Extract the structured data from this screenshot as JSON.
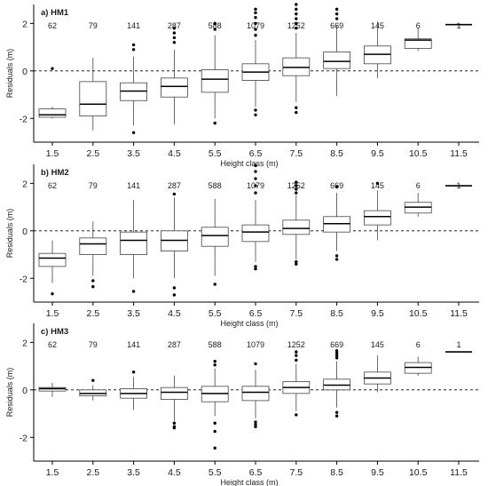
{
  "chart_data": [
    {
      "type": "box",
      "title": "a) HM1",
      "xlabel": "Height class (m)",
      "ylabel": "Residuals (m)",
      "ylim": [
        -3,
        2.8
      ],
      "yticks": [
        -2,
        0,
        2
      ],
      "grid": false,
      "zero_line": "dashed",
      "categories": [
        "1.5",
        "2.5",
        "3.5",
        "4.5",
        "5.5",
        "6.5",
        "7.5",
        "8.5",
        "9.5",
        "10.5",
        "11.5"
      ],
      "counts": [
        "62",
        "79",
        "141",
        "287",
        "588",
        "1079",
        "1252",
        "669",
        "145",
        "6",
        "1"
      ],
      "boxes": [
        {
          "min": -2.0,
          "q1": -1.95,
          "median": -1.85,
          "q3": -1.6,
          "max": -1.5,
          "outliers": [
            0.1
          ]
        },
        {
          "min": -2.5,
          "q1": -1.9,
          "median": -1.4,
          "q3": -0.45,
          "max": 0.55,
          "outliers": []
        },
        {
          "min": -2.3,
          "q1": -1.25,
          "median": -0.85,
          "q3": -0.5,
          "max": 0.6,
          "outliers": [
            -2.6,
            0.9,
            1.1
          ]
        },
        {
          "min": -2.25,
          "q1": -1.1,
          "median": -0.65,
          "q3": -0.3,
          "max": 0.9,
          "outliers": [
            1.2,
            1.4,
            1.6,
            1.8
          ]
        },
        {
          "min": -2.0,
          "q1": -0.9,
          "median": -0.35,
          "q3": 0.05,
          "max": 1.5,
          "outliers": [
            -2.2,
            1.75,
            2.0
          ]
        },
        {
          "min": -1.5,
          "q1": -0.4,
          "median": -0.05,
          "q3": 0.3,
          "max": 1.3,
          "outliers": [
            -1.85,
            -1.65,
            1.5,
            1.75,
            2.0,
            2.25,
            2.45,
            2.6
          ]
        },
        {
          "min": -1.3,
          "q1": -0.2,
          "median": 0.15,
          "q3": 0.55,
          "max": 1.6,
          "outliers": [
            -1.75,
            -1.55,
            1.8,
            2.0,
            2.2,
            2.4,
            2.6,
            2.8
          ]
        },
        {
          "min": -1.05,
          "q1": 0.1,
          "median": 0.4,
          "q3": 0.8,
          "max": 1.9,
          "outliers": [
            2.2,
            2.4,
            2.6
          ]
        },
        {
          "min": -0.3,
          "q1": 0.3,
          "median": 0.7,
          "q3": 1.05,
          "max": 2.1,
          "outliers": []
        },
        {
          "min": 0.85,
          "q1": 0.95,
          "median": 1.3,
          "q3": 1.35,
          "max": 1.8,
          "outliers": []
        },
        {
          "min": 1.95,
          "q1": 1.95,
          "median": 1.95,
          "q3": 1.95,
          "max": 1.95,
          "outliers": []
        }
      ]
    },
    {
      "type": "box",
      "title": "b) HM2",
      "xlabel": "Height class (m)",
      "ylabel": "Residuals (m)",
      "ylim": [
        -3,
        2.8
      ],
      "yticks": [
        -2,
        0,
        2
      ],
      "grid": false,
      "zero_line": "dashed",
      "categories": [
        "1.5",
        "2.5",
        "3.5",
        "4.5",
        "5.5",
        "6.5",
        "7.5",
        "8.5",
        "9.5",
        "10.5",
        "11.5"
      ],
      "counts": [
        "62",
        "79",
        "141",
        "287",
        "588",
        "1079",
        "1252",
        "669",
        "145",
        "6",
        "1"
      ],
      "boxes": [
        {
          "min": -2.2,
          "q1": -1.5,
          "median": -1.15,
          "q3": -0.95,
          "max": -0.4,
          "outliers": [
            -2.65
          ]
        },
        {
          "min": -1.9,
          "q1": -1.0,
          "median": -0.55,
          "q3": -0.3,
          "max": 0.4,
          "outliers": [
            -2.1,
            -2.35
          ]
        },
        {
          "min": -2.0,
          "q1": -1.0,
          "median": -0.4,
          "q3": -0.05,
          "max": 1.3,
          "outliers": [
            -2.55
          ]
        },
        {
          "min": -2.0,
          "q1": -0.85,
          "median": -0.4,
          "q3": 0.0,
          "max": 1.4,
          "outliers": [
            -2.4,
            -2.7,
            1.55
          ]
        },
        {
          "min": -1.9,
          "q1": -0.65,
          "median": -0.2,
          "q3": 0.15,
          "max": 1.35,
          "outliers": [
            -2.25
          ]
        },
        {
          "min": -1.3,
          "q1": -0.45,
          "median": -0.05,
          "q3": 0.25,
          "max": 1.3,
          "outliers": [
            -1.5,
            -1.6,
            1.6,
            1.9,
            2.2,
            2.5,
            2.75
          ]
        },
        {
          "min": -1.2,
          "q1": -0.15,
          "median": 0.1,
          "q3": 0.45,
          "max": 1.5,
          "outliers": [
            -1.3,
            -1.4,
            1.6,
            1.75,
            1.9,
            2.05
          ]
        },
        {
          "min": -0.85,
          "q1": -0.05,
          "median": 0.3,
          "q3": 0.6,
          "max": 1.6,
          "outliers": [
            -1.05,
            -1.2,
            1.85
          ]
        },
        {
          "min": -0.4,
          "q1": 0.25,
          "median": 0.6,
          "q3": 0.85,
          "max": 1.7,
          "outliers": [
            2.0
          ]
        },
        {
          "min": 0.6,
          "q1": 0.75,
          "median": 1.0,
          "q3": 1.2,
          "max": 1.6,
          "outliers": []
        },
        {
          "min": 1.9,
          "q1": 1.9,
          "median": 1.9,
          "q3": 1.9,
          "max": 1.9,
          "outliers": []
        }
      ]
    },
    {
      "type": "box",
      "title": "c) HM3",
      "xlabel": "Height class (m)",
      "ylabel": "Residuals (m)",
      "ylim": [
        -3,
        2.8
      ],
      "yticks": [
        -2,
        0,
        2
      ],
      "grid": false,
      "zero_line": "dashed",
      "categories": [
        "1.5",
        "2.5",
        "3.5",
        "4.5",
        "5.5",
        "6.5",
        "7.5",
        "8.5",
        "9.5",
        "10.5",
        "11.5"
      ],
      "counts": [
        "62",
        "79",
        "141",
        "287",
        "588",
        "1079",
        "1252",
        "669",
        "145",
        "6",
        "1"
      ],
      "boxes": [
        {
          "min": -0.3,
          "q1": -0.05,
          "median": 0.05,
          "q3": 0.1,
          "max": 0.3,
          "outliers": []
        },
        {
          "min": -0.45,
          "q1": -0.25,
          "median": -0.15,
          "q3": 0.0,
          "max": 0.2,
          "outliers": [
            0.4
          ]
        },
        {
          "min": -0.85,
          "q1": -0.35,
          "median": -0.15,
          "q3": 0.05,
          "max": 0.55,
          "outliers": [
            0.75
          ]
        },
        {
          "min": -1.3,
          "q1": -0.4,
          "median": -0.1,
          "q3": 0.1,
          "max": 0.6,
          "outliers": [
            -1.4,
            -1.55,
            -1.6
          ]
        },
        {
          "min": -1.1,
          "q1": -0.5,
          "median": -0.15,
          "q3": 0.15,
          "max": 0.9,
          "outliers": [
            -1.4,
            -1.75,
            -2.45,
            1.05,
            1.2
          ]
        },
        {
          "min": -1.2,
          "q1": -0.45,
          "median": -0.1,
          "q3": 0.15,
          "max": 0.85,
          "outliers": [
            -1.35,
            -1.45,
            -1.55,
            1.1
          ]
        },
        {
          "min": -0.9,
          "q1": -0.15,
          "median": 0.1,
          "q3": 0.35,
          "max": 1.1,
          "outliers": [
            -1.05,
            1.25,
            1.45,
            1.6
          ]
        },
        {
          "min": -0.75,
          "q1": 0.0,
          "median": 0.2,
          "q3": 0.45,
          "max": 1.2,
          "outliers": [
            -0.95,
            -1.1,
            1.35,
            1.45,
            1.55,
            1.65
          ]
        },
        {
          "min": -0.1,
          "q1": 0.25,
          "median": 0.5,
          "q3": 0.75,
          "max": 1.45,
          "outliers": []
        },
        {
          "min": 0.6,
          "q1": 0.7,
          "median": 0.95,
          "q3": 1.15,
          "max": 1.4,
          "outliers": []
        },
        {
          "min": 1.6,
          "q1": 1.6,
          "median": 1.6,
          "q3": 1.6,
          "max": 1.6,
          "outliers": []
        }
      ]
    }
  ]
}
